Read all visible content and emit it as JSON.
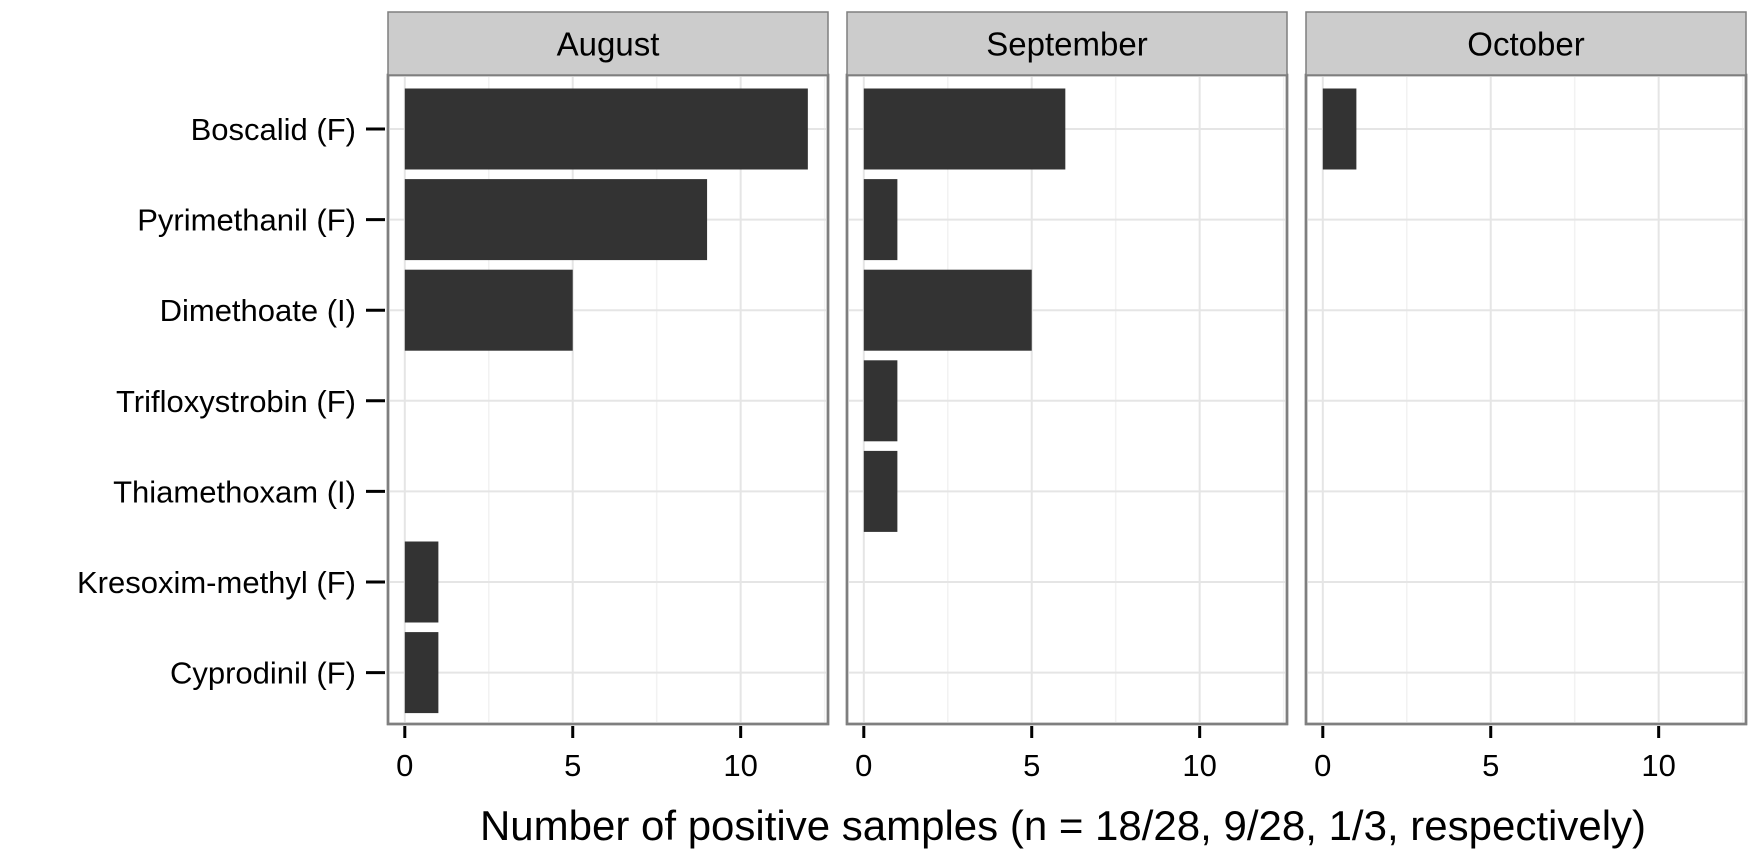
{
  "chart_data": {
    "type": "bar",
    "orientation": "horizontal",
    "facets": [
      "August",
      "September",
      "October"
    ],
    "categories": [
      "Boscalid (F)",
      "Pyrimethanil (F)",
      "Dimethoate (I)",
      "Trifloxystrobin (F)",
      "Thiamethoxam (I)",
      "Kresoxim-methyl (F)",
      "Cyprodinil (F)"
    ],
    "series": [
      {
        "facet": "August",
        "values": [
          12,
          9,
          5,
          0,
          0,
          1,
          1
        ]
      },
      {
        "facet": "September",
        "values": [
          6,
          1,
          5,
          1,
          1,
          0,
          0
        ]
      },
      {
        "facet": "October",
        "values": [
          1,
          0,
          0,
          0,
          0,
          0,
          0
        ]
      }
    ],
    "xlabel": "Number of positive samples (n = 18/28, 9/28, 1/3, respectively)",
    "ylabel": "",
    "title": "",
    "xlim": [
      -0.5,
      12.6
    ],
    "xticks": [
      0,
      5,
      10
    ],
    "xtick_labels": [
      "0",
      "5",
      "10"
    ],
    "grid": true,
    "theme": "bw",
    "colors": {
      "bar": "#333333",
      "strip": "#cccccc",
      "border": "#7f7f7f",
      "grid_major": "#e5e5e5",
      "grid_minor": "#f2f2f2"
    }
  }
}
